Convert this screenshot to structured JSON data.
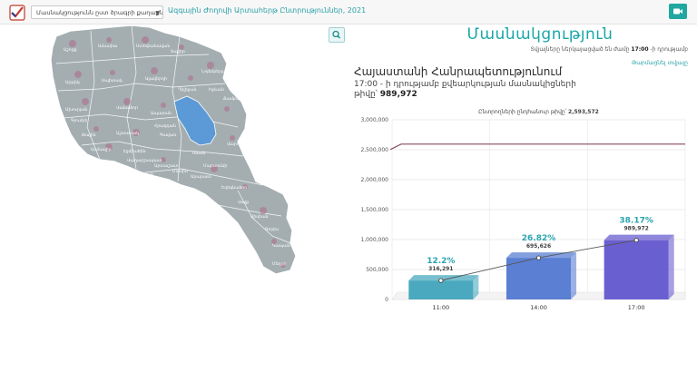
{
  "header": {
    "select_value": "Մասնակցությունն ըստ ծրագրի քաղաքների",
    "page_link": "Ազգային Ժողովի Արտահերթ Ընտրություններ, 2021"
  },
  "main": {
    "title": "Մասնակցություն",
    "subtitle_prefix": "Տվյալները ներկայացված են ժամը",
    "subtitle_time": "17:00",
    "subtitle_suffix": "-ի դրությամբ",
    "refresh_link": "Թարմացնել տվյալը",
    "region_title": "Հայաստանի Հանրապետությունում",
    "region_sub_line1": "17:00 - ի դրությամբ քվեարկության մասնակիցների",
    "region_count_label": "թիվը՝",
    "region_count_value": "989,972"
  },
  "colors": {
    "accent": "#19a6a6",
    "map_fill": "#a4aeb1",
    "lake": "#5b9ad6",
    "bar_1": "#4aa9bf",
    "bar_2": "#5a7fd3",
    "bar_3": "#6a5fd0",
    "total_line": "#8b4a63"
  },
  "chart_data": {
    "type": "bar",
    "categories": [
      "11:00",
      "14:00",
      "17:00"
    ],
    "values": [
      316291,
      695626,
      989972
    ],
    "value_labels": [
      "316,291",
      "695,626",
      "989,972"
    ],
    "percent_labels": [
      "12.2%",
      "26.82%",
      "38.17%"
    ],
    "ylim": [
      0,
      3000000
    ],
    "y_ticks": [
      0,
      500000,
      1000000,
      1500000,
      2000000,
      2500000,
      3000000
    ],
    "y_tick_labels": [
      "0",
      "500,000",
      "1,000,000",
      "1,500,000",
      "2,000,000",
      "2,500,000",
      "3,000,000"
    ],
    "total_voters": 2593572,
    "total_label": "Ընտրողների ընդհանուր թիվը՝",
    "total_value": "2,593,572",
    "grid": true
  },
  "map": {
    "labels": [
      "Աշոցք",
      "Ամասիա",
      "Ստեփանավան",
      "Տաշիր",
      "Նոյեմբերյան",
      "Իջևան",
      "Արթիկ",
      "Սպիտակ",
      "Ալավերդի",
      "Դիլիջան",
      "Ախուրյան",
      "Գյումրի",
      "Վանաձոր",
      "Թալին",
      "Աշտարակ",
      "Ապարան",
      "Հրազդան",
      "Սևան",
      "Մարտունի",
      "Գավառ",
      "Արմավիր",
      "Էջմիածին",
      "Վաղարշապատ",
      "Արտաշատ",
      "Մասիս",
      "Երևան",
      "Արարատ",
      "Եղեգնաձոր",
      "Վայք",
      "Սիսիան",
      "Գորիս",
      "Կապան",
      "Մեղրի",
      "Ճամբարակ",
      "Վարդենիս"
    ]
  }
}
